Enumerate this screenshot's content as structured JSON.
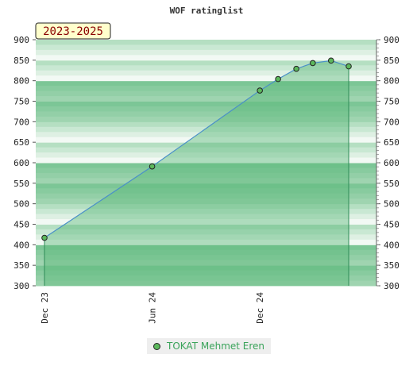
{
  "chart_data": {
    "type": "area",
    "title": "WOF ratinglist",
    "period_label": "2023-2025",
    "x_tick_labels": [
      "Dec 23",
      "Jun 24",
      "Dec 24"
    ],
    "x_tick_dates": [
      "2023-12-01",
      "2024-06-01",
      "2024-12-01"
    ],
    "x_range": [
      "2023-12-01",
      "2025-06-01"
    ],
    "ylim": [
      300,
      900
    ],
    "y_ticks": [
      300,
      350,
      400,
      450,
      500,
      550,
      600,
      650,
      700,
      750,
      800,
      850,
      900
    ],
    "y_axis_sides": "left-and-right",
    "series": [
      {
        "name": "TOKAT Mehmet Eren",
        "points": [
          {
            "date": "2023-12-01",
            "value": 417
          },
          {
            "date": "2024-06-01",
            "value": 591
          },
          {
            "date": "2024-12-01",
            "value": 776
          },
          {
            "date": "2025-01-01",
            "value": 804
          },
          {
            "date": "2025-02-01",
            "value": 829
          },
          {
            "date": "2025-03-01",
            "value": 843
          },
          {
            "date": "2025-04-01",
            "value": 849
          },
          {
            "date": "2025-05-01",
            "value": 835
          }
        ]
      }
    ],
    "legend_placement": "bottom-center",
    "colors": {
      "line": "#4a90c8",
      "fill": "#5cb87a",
      "marker": "#5cb85c",
      "badge_bg": "#ffffcc",
      "badge_text": "#8b0000",
      "legend_text": "#3aa35a"
    }
  }
}
